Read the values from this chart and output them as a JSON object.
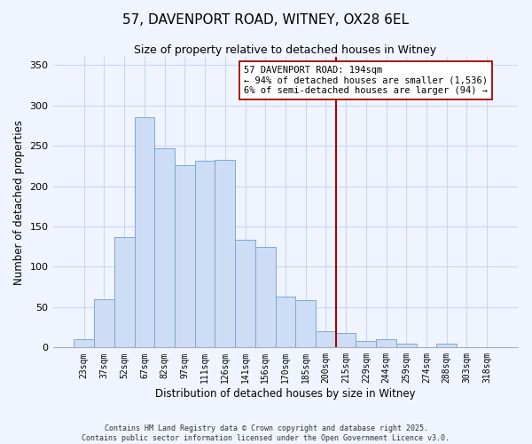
{
  "title_line1": "57, DAVENPORT ROAD, WITNEY, OX28 6EL",
  "title_line2": "Size of property relative to detached houses in Witney",
  "xlabel": "Distribution of detached houses by size in Witney",
  "ylabel": "Number of detached properties",
  "bar_labels": [
    "23sqm",
    "37sqm",
    "52sqm",
    "67sqm",
    "82sqm",
    "97sqm",
    "111sqm",
    "126sqm",
    "141sqm",
    "156sqm",
    "170sqm",
    "185sqm",
    "200sqm",
    "215sqm",
    "229sqm",
    "244sqm",
    "259sqm",
    "274sqm",
    "288sqm",
    "303sqm",
    "318sqm"
  ],
  "bar_values": [
    10,
    60,
    137,
    285,
    247,
    226,
    231,
    233,
    134,
    125,
    63,
    59,
    20,
    18,
    8,
    10,
    5,
    0,
    5,
    0,
    0
  ],
  "bar_color": "#ccddf5",
  "bar_edge_color": "#7aa8d8",
  "vline_x": 12.5,
  "vline_color": "#aa0000",
  "ylim": [
    0,
    360
  ],
  "yticks": [
    0,
    50,
    100,
    150,
    200,
    250,
    300,
    350
  ],
  "annotation_title": "57 DAVENPORT ROAD: 194sqm",
  "annotation_line1": "← 94% of detached houses are smaller (1,536)",
  "annotation_line2": "6% of semi-detached houses are larger (94) →",
  "annotation_box_color": "#ffffff",
  "annotation_box_edge": "#aa0000",
  "footer_line1": "Contains HM Land Registry data © Crown copyright and database right 2025.",
  "footer_line2": "Contains public sector information licensed under the Open Government Licence v3.0.",
  "background_color": "#f0f4ff",
  "grid_color": "#c8d8ee"
}
